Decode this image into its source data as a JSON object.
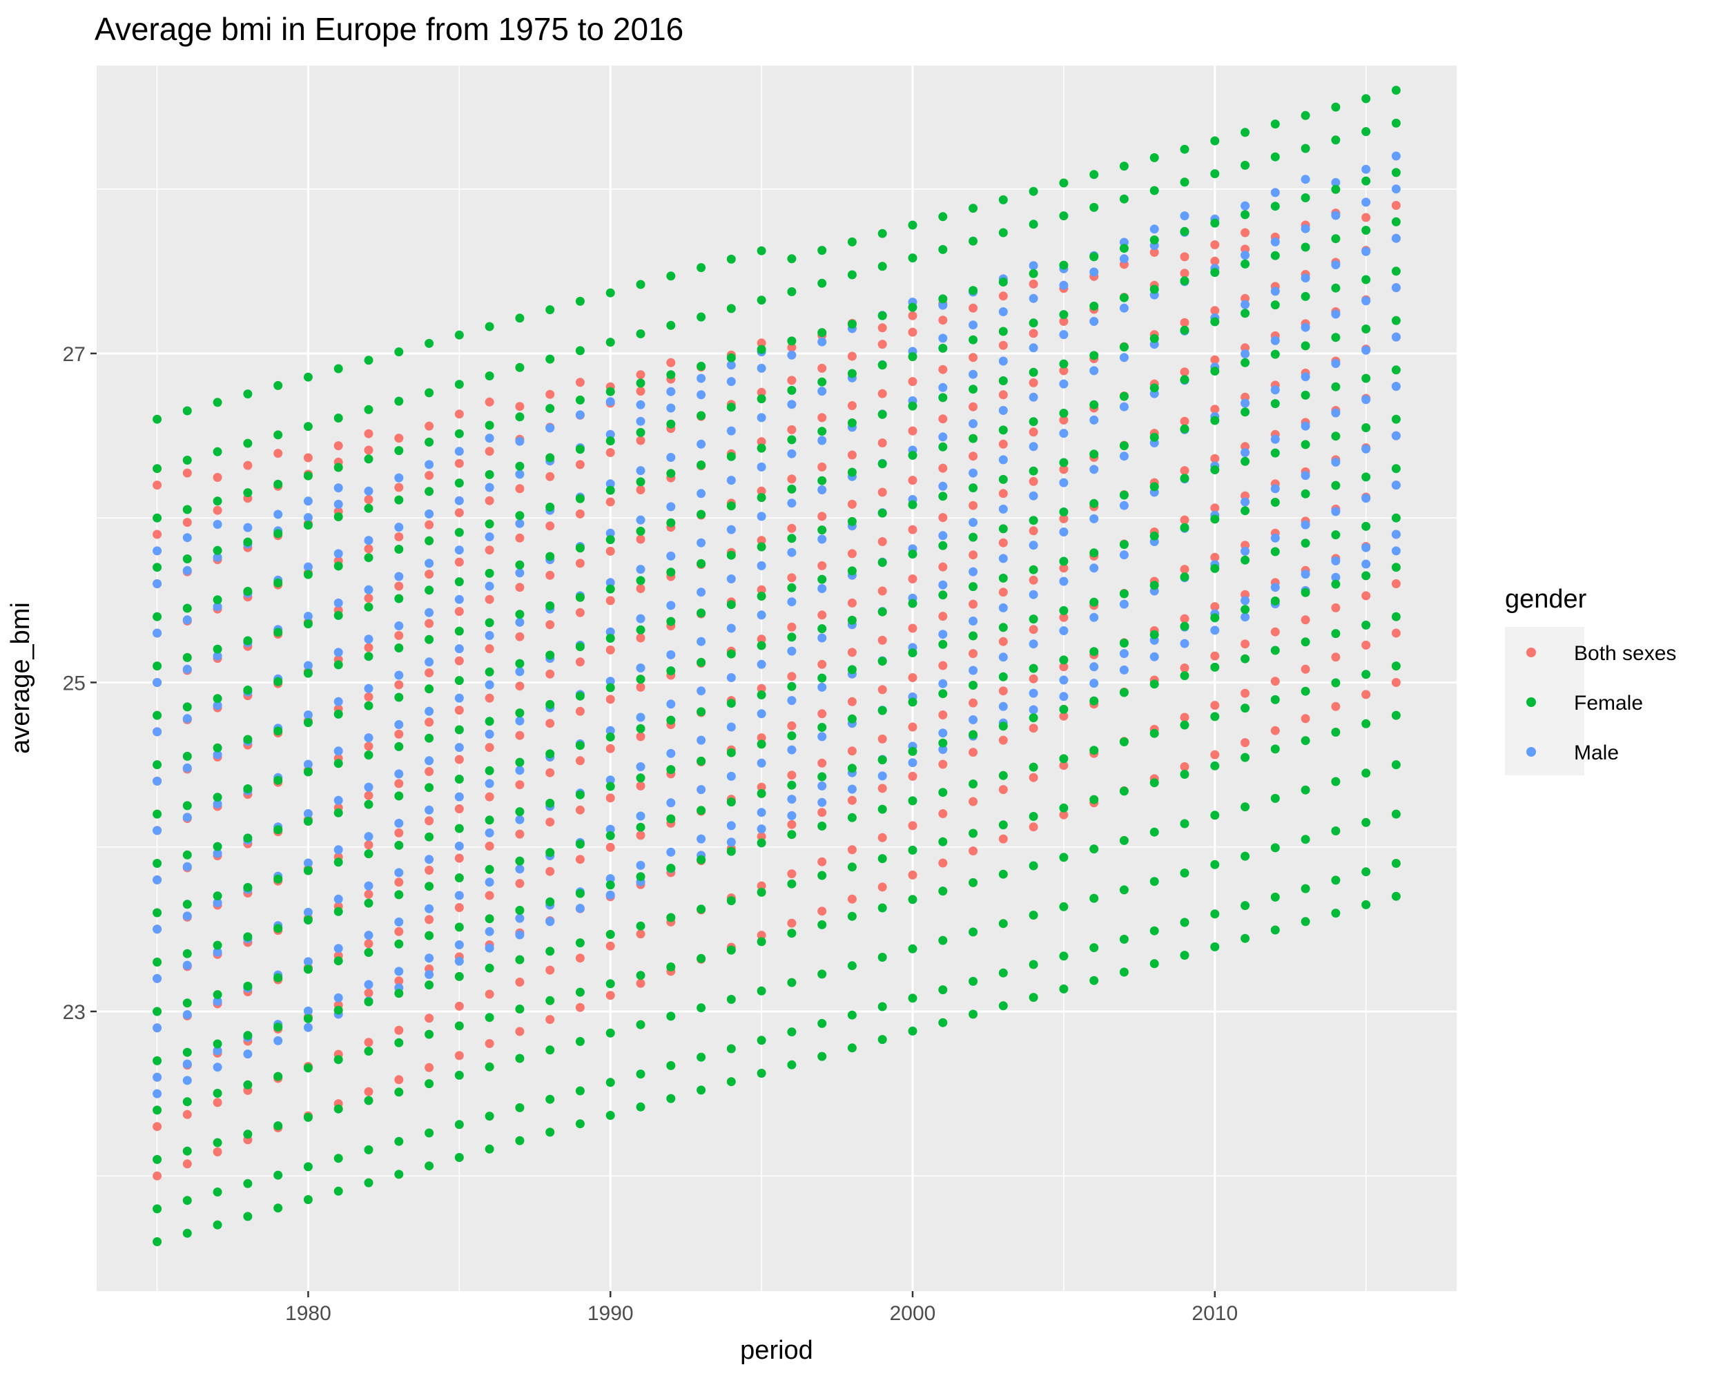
{
  "chart_data": {
    "type": "scatter",
    "title": "Average bmi in Europe from 1975 to 2016",
    "xlabel": "period",
    "ylabel": "average_bmi",
    "xlim": [
      1973.0,
      2018.0
    ],
    "ylim": [
      21.3,
      28.75
    ],
    "x_ticks": [
      1980,
      1990,
      2000,
      2010
    ],
    "y_ticks": [
      23,
      25,
      27
    ],
    "y_minor_ticks": [
      22,
      24,
      26,
      28
    ],
    "grid": true,
    "legend_title": "gender",
    "legend_position": "right",
    "x_range": [
      1975,
      2016
    ],
    "series": [
      {
        "name": "Both sexes",
        "color": "#F8766D",
        "min_start": 22.0,
        "min_end": 25.0,
        "max_start": 26.2,
        "max_end": 27.9
      },
      {
        "name": "Female",
        "color": "#00BA38",
        "min_start": 21.6,
        "min_end": 23.7,
        "max_start": 26.6,
        "max_end": 28.6
      },
      {
        "name": "Male",
        "color": "#619CFF",
        "min_start": 22.5,
        "min_end": 25.8,
        "max_start": 25.8,
        "max_end": 28.2
      }
    ],
    "step": 0.1
  }
}
